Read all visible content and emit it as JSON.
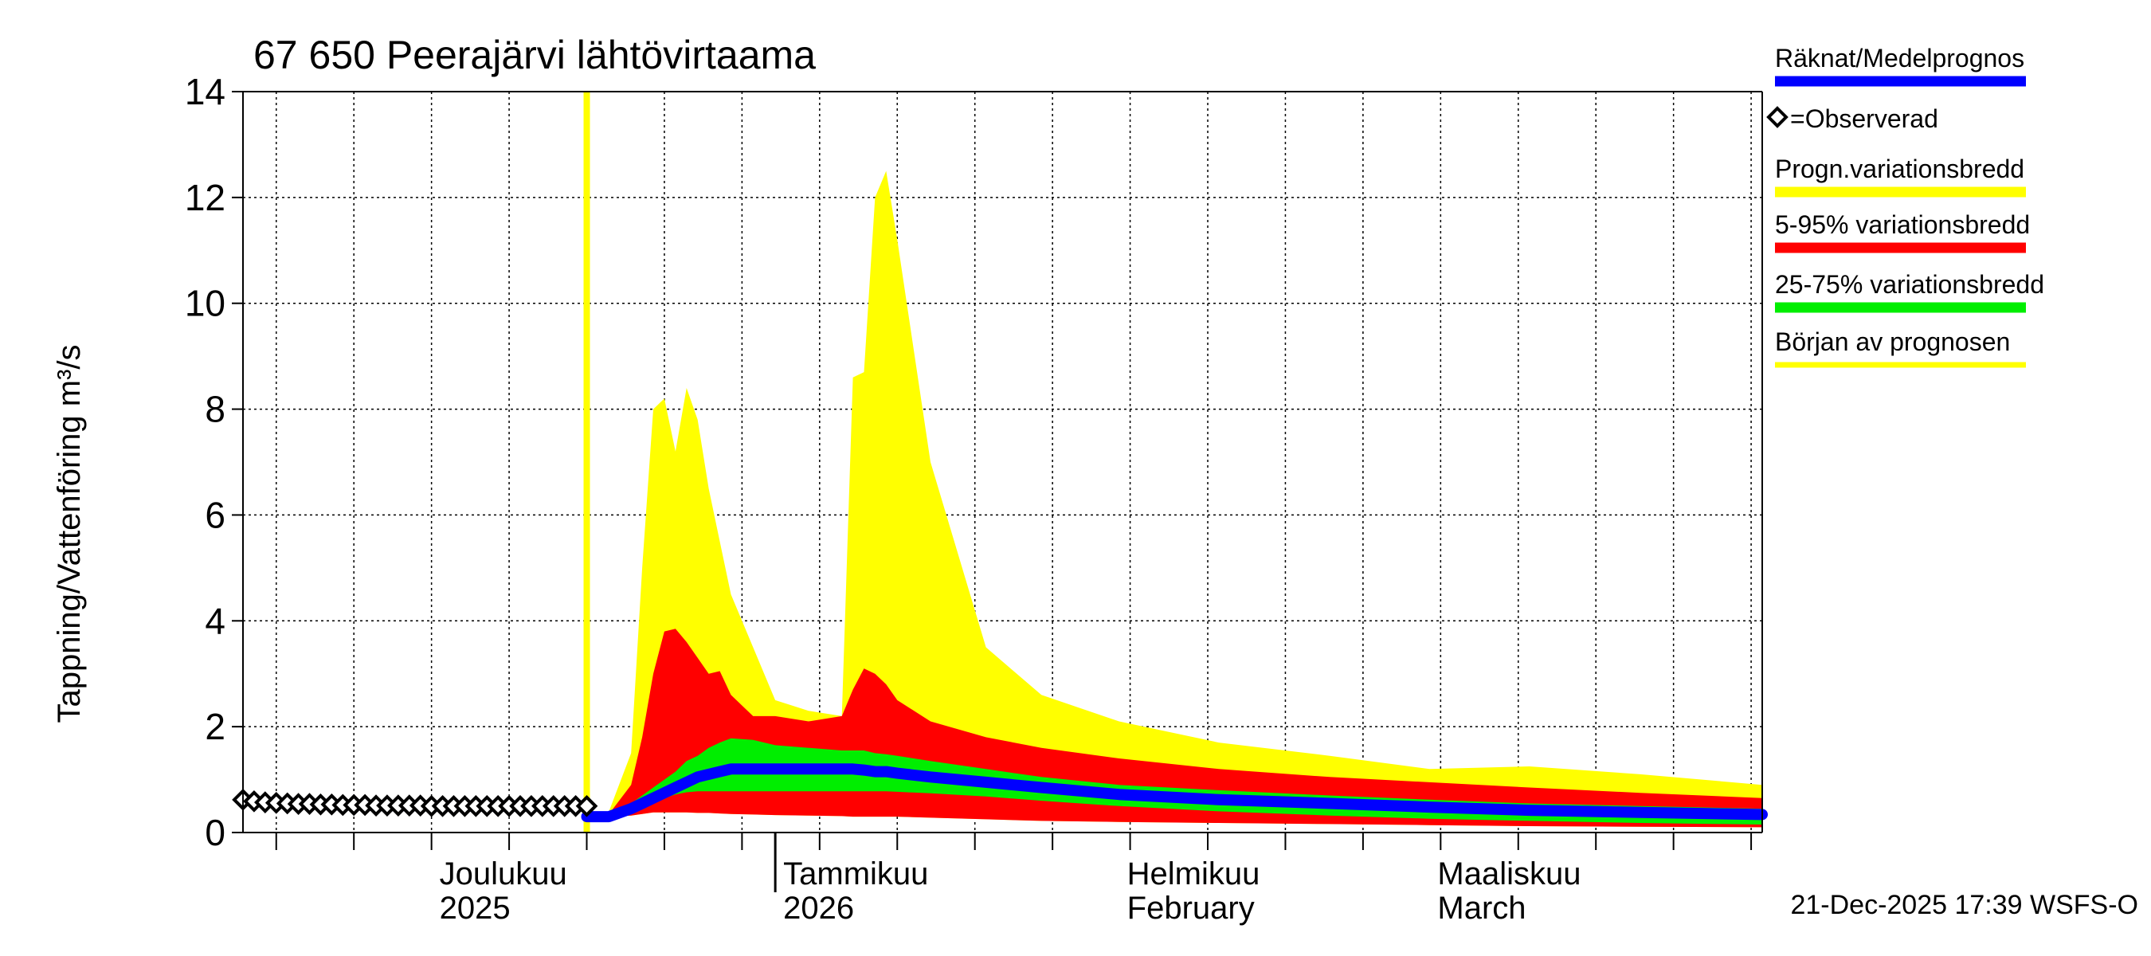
{
  "chart_data": {
    "type": "area",
    "title": "67 650 Peerajärvi lähtövirtaama",
    "ylabel": "Tappning/Vattenföring m³/s",
    "ylim": [
      0,
      14
    ],
    "yticks": [
      0,
      2,
      4,
      6,
      8,
      10,
      12,
      14
    ],
    "xlim": [
      "2025-11-14",
      "2026-03-31"
    ],
    "month_labels": [
      {
        "date": "2025-12-01",
        "line1": "Joulukuu",
        "line2": "2025"
      },
      {
        "date": "2026-01-01",
        "line1": "Tammikuu",
        "line2": "2026"
      },
      {
        "date": "2026-02-01",
        "line1": "Helmikuu",
        "line2": "February"
      },
      {
        "date": "2026-03-01",
        "line1": "Maaliskuu",
        "line2": "March"
      }
    ],
    "forecast_start": "2025-12-15",
    "footer": "21-Dec-2025 17:39 WSFS-O",
    "colors": {
      "mean": "#0000ff",
      "observed": "#000000",
      "prognosis_range": "#ffff00",
      "range_5_95": "#ff0000",
      "range_25_75": "#00ee00",
      "forecast_start": "#ffff00"
    },
    "legend": [
      {
        "label": "Räknat/Medelprognos",
        "key": "mean"
      },
      {
        "label": "=Observerad",
        "key": "observed"
      },
      {
        "label": "Progn.variationsbredd",
        "key": "prognosis_range"
      },
      {
        "label": "5-95% variationsbredd",
        "key": "range_5_95"
      },
      {
        "label": "25-75% variationsbredd",
        "key": "range_25_75"
      },
      {
        "label": "Början av prognosen",
        "key": "forecast_start"
      }
    ],
    "observed": {
      "x": [
        "2025-11-14",
        "2025-11-15",
        "2025-11-16",
        "2025-11-17",
        "2025-11-18",
        "2025-11-19",
        "2025-11-20",
        "2025-11-21",
        "2025-11-22",
        "2025-11-23",
        "2025-11-24",
        "2025-11-25",
        "2025-11-26",
        "2025-11-27",
        "2025-11-28",
        "2025-11-29",
        "2025-11-30",
        "2025-12-01",
        "2025-12-02",
        "2025-12-03",
        "2025-12-04",
        "2025-12-05",
        "2025-12-06",
        "2025-12-07",
        "2025-12-08",
        "2025-12-09",
        "2025-12-10",
        "2025-12-11",
        "2025-12-12",
        "2025-12-13",
        "2025-12-14",
        "2025-12-15"
      ],
      "y": [
        0.62,
        0.59,
        0.57,
        0.56,
        0.55,
        0.54,
        0.54,
        0.53,
        0.53,
        0.52,
        0.52,
        0.52,
        0.51,
        0.51,
        0.51,
        0.51,
        0.51,
        0.5,
        0.5,
        0.5,
        0.5,
        0.5,
        0.5,
        0.5,
        0.5,
        0.5,
        0.5,
        0.5,
        0.5,
        0.5,
        0.5,
        0.5
      ]
    },
    "forecast_x": [
      "2025-12-15",
      "2025-12-17",
      "2025-12-19",
      "2025-12-20",
      "2025-12-21",
      "2025-12-22",
      "2025-12-23",
      "2025-12-24",
      "2025-12-25",
      "2025-12-26",
      "2025-12-27",
      "2025-12-28",
      "2025-12-30",
      "2026-01-01",
      "2026-01-04",
      "2026-01-07",
      "2026-01-08",
      "2026-01-09",
      "2026-01-10",
      "2026-01-11",
      "2026-01-12",
      "2026-01-15",
      "2026-01-20",
      "2026-01-25",
      "2026-02-01",
      "2026-02-10",
      "2026-02-20",
      "2026-03-01",
      "2026-03-10",
      "2026-03-20",
      "2026-03-31"
    ],
    "series": [
      {
        "name": "Progn.variationsbredd",
        "key": "prognosis_range",
        "low": [
          0.3,
          0.3,
          0.32,
          0.35,
          0.38,
          0.38,
          0.38,
          0.38,
          0.37,
          0.37,
          0.36,
          0.35,
          0.34,
          0.33,
          0.32,
          0.31,
          0.3,
          0.3,
          0.3,
          0.3,
          0.3,
          0.28,
          0.25,
          0.22,
          0.2,
          0.18,
          0.16,
          0.14,
          0.12,
          0.11,
          0.1
        ],
        "high": [
          0.3,
          0.4,
          1.5,
          5.0,
          8.0,
          8.2,
          7.2,
          8.4,
          7.8,
          6.5,
          5.5,
          4.5,
          3.5,
          2.5,
          2.3,
          2.2,
          8.6,
          8.7,
          12.0,
          12.5,
          11.2,
          7.0,
          3.5,
          2.6,
          2.1,
          1.7,
          1.45,
          1.2,
          1.25,
          1.1,
          0.9
        ]
      },
      {
        "name": "5-95% variationsbredd",
        "key": "range_5_95",
        "low": [
          0.3,
          0.3,
          0.32,
          0.35,
          0.38,
          0.38,
          0.38,
          0.38,
          0.37,
          0.37,
          0.36,
          0.35,
          0.34,
          0.33,
          0.32,
          0.31,
          0.3,
          0.3,
          0.3,
          0.3,
          0.3,
          0.28,
          0.25,
          0.22,
          0.2,
          0.18,
          0.16,
          0.14,
          0.12,
          0.11,
          0.1
        ],
        "high": [
          0.3,
          0.35,
          0.9,
          1.8,
          3.0,
          3.8,
          3.85,
          3.6,
          3.3,
          3.0,
          3.05,
          2.6,
          2.2,
          2.2,
          2.1,
          2.2,
          2.7,
          3.1,
          3.0,
          2.8,
          2.5,
          2.1,
          1.8,
          1.6,
          1.4,
          1.2,
          1.05,
          0.95,
          0.85,
          0.75,
          0.65
        ]
      },
      {
        "name": "25-75% variationsbredd",
        "key": "range_25_75",
        "low": [
          0.3,
          0.3,
          0.35,
          0.45,
          0.55,
          0.65,
          0.72,
          0.76,
          0.78,
          0.78,
          0.78,
          0.78,
          0.78,
          0.78,
          0.78,
          0.78,
          0.78,
          0.78,
          0.78,
          0.78,
          0.77,
          0.74,
          0.68,
          0.6,
          0.5,
          0.4,
          0.32,
          0.26,
          0.22,
          0.18,
          0.15
        ],
        "high": [
          0.3,
          0.35,
          0.55,
          0.7,
          0.85,
          1.0,
          1.15,
          1.35,
          1.45,
          1.6,
          1.7,
          1.78,
          1.75,
          1.65,
          1.6,
          1.55,
          1.55,
          1.55,
          1.5,
          1.48,
          1.45,
          1.35,
          1.2,
          1.05,
          0.9,
          0.8,
          0.7,
          0.62,
          0.55,
          0.5,
          0.45
        ]
      },
      {
        "name": "Räknat/Medelprognos",
        "key": "mean",
        "values": [
          0.3,
          0.3,
          0.45,
          0.55,
          0.65,
          0.75,
          0.85,
          0.95,
          1.05,
          1.1,
          1.15,
          1.2,
          1.2,
          1.2,
          1.2,
          1.2,
          1.2,
          1.18,
          1.15,
          1.15,
          1.12,
          1.05,
          0.95,
          0.85,
          0.72,
          0.62,
          0.55,
          0.48,
          0.42,
          0.38,
          0.34
        ]
      }
    ]
  }
}
